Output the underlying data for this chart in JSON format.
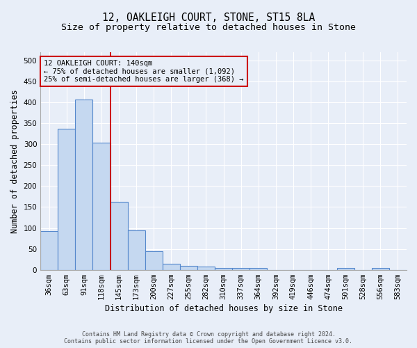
{
  "title": "12, OAKLEIGH COURT, STONE, ST15 8LA",
  "subtitle": "Size of property relative to detached houses in Stone",
  "xlabel": "Distribution of detached houses by size in Stone",
  "ylabel": "Number of detached properties",
  "footer_line1": "Contains HM Land Registry data © Crown copyright and database right 2024.",
  "footer_line2": "Contains public sector information licensed under the Open Government Licence v3.0.",
  "bar_labels": [
    "36sqm",
    "63sqm",
    "91sqm",
    "118sqm",
    "145sqm",
    "173sqm",
    "200sqm",
    "227sqm",
    "255sqm",
    "282sqm",
    "310sqm",
    "337sqm",
    "364sqm",
    "392sqm",
    "419sqm",
    "446sqm",
    "474sqm",
    "501sqm",
    "528sqm",
    "556sqm",
    "583sqm"
  ],
  "bar_values": [
    92,
    337,
    407,
    303,
    162,
    95,
    44,
    15,
    10,
    7,
    5,
    5,
    5,
    0,
    0,
    0,
    0,
    4,
    0,
    4,
    0
  ],
  "bar_color": "#c5d8f0",
  "bar_edge_color": "#5588cc",
  "annotation_line1": "12 OAKLEIGH COURT: 140sqm",
  "annotation_line2": "← 75% of detached houses are smaller (1,092)",
  "annotation_line3": "25% of semi-detached houses are larger (368) →",
  "vline_x": 3.5,
  "vline_color": "#cc0000",
  "annotation_box_color": "#cc0000",
  "ylim": [
    0,
    520
  ],
  "yticks": [
    0,
    50,
    100,
    150,
    200,
    250,
    300,
    350,
    400,
    450,
    500
  ],
  "background_color": "#e8eef8",
  "plot_bg_color": "#e8eef8",
  "grid_color": "#ffffff",
  "title_fontsize": 10.5,
  "subtitle_fontsize": 9.5,
  "axis_label_fontsize": 8.5,
  "tick_fontsize": 7.5,
  "annotation_fontsize": 7.5,
  "footer_fontsize": 6.0
}
